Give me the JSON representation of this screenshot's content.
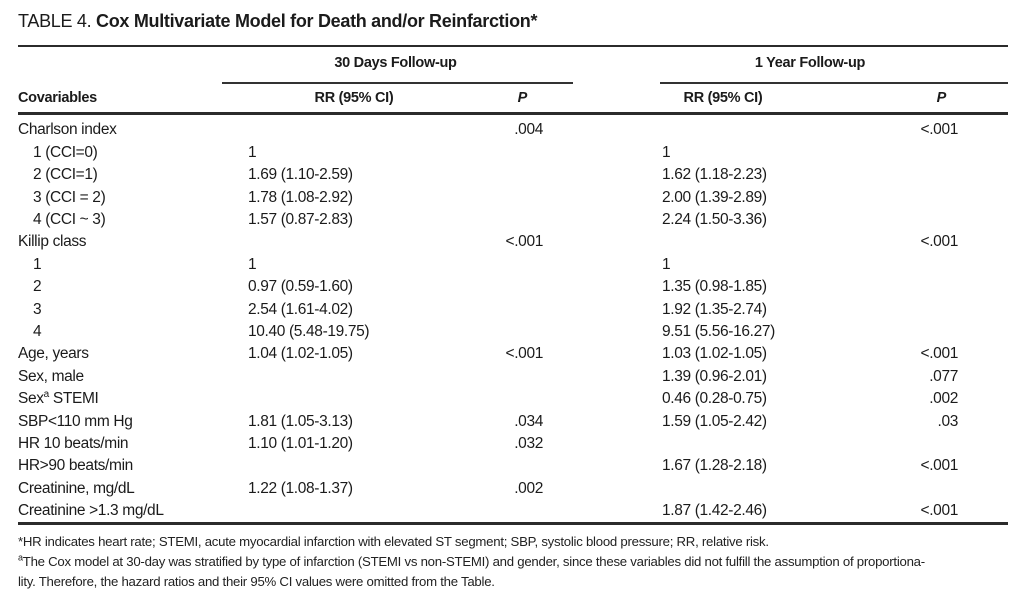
{
  "title": {
    "prefix": "TABLE 4.",
    "text": "Cox Multivariate Model for Death and/or Reinfarction*"
  },
  "header": {
    "covariables": "Covariables",
    "groups": [
      {
        "label": "30 Days Follow-up",
        "rr": "RR (95% CI)",
        "p": "P"
      },
      {
        "label": "1 Year Follow-up",
        "rr": "RR (95% CI)",
        "p": "P"
      }
    ]
  },
  "rows": [
    {
      "label": "Charlson index",
      "p30": ".004",
      "p1y": "<.001"
    },
    {
      "label": "1 (CCI=0)",
      "indent": true,
      "rr30": "1",
      "rr1y": "1"
    },
    {
      "label": "2 (CCI=1)",
      "indent": true,
      "rr30": "1.69 (1.10-2.59)",
      "rr1y": "1.62 (1.18-2.23)"
    },
    {
      "label": "3 (CCI = 2)",
      "indent": true,
      "rr30": "1.78 (1.08-2.92)",
      "rr1y": "2.00 (1.39-2.89)"
    },
    {
      "label": "4 (CCI ~ 3)",
      "indent": true,
      "rr30": "1.57 (0.87-2.83)",
      "rr1y": "2.24 (1.50-3.36)"
    },
    {
      "label": "Killip class",
      "p30": "<.001",
      "p1y": "<.001"
    },
    {
      "label": "1",
      "indent": true,
      "rr30": "1",
      "rr1y": "1"
    },
    {
      "label": "2",
      "indent": true,
      "rr30": "0.97 (0.59-1.60)",
      "rr1y": "1.35 (0.98-1.85)"
    },
    {
      "label": "3",
      "indent": true,
      "rr30": "2.54 (1.61-4.02)",
      "rr1y": "1.92 (1.35-2.74)"
    },
    {
      "label": "4",
      "indent": true,
      "rr30": "10.40 (5.48-19.75)",
      "rr1y": "9.51 (5.56-16.27)"
    },
    {
      "label": "Age, years",
      "rr30": "1.04 (1.02-1.05)",
      "p30": "<.001",
      "rr1y": "1.03 (1.02-1.05)",
      "p1y": "<.001"
    },
    {
      "label": "Sex, male",
      "rr1y": "1.39 (0.96-2.01)",
      "p1y": ".077"
    },
    {
      "label": "Sex",
      "sup": "a",
      "label2": " STEMI",
      "rr1y": "0.46 (0.28-0.75)",
      "p1y": ".002"
    },
    {
      "label": "SBP<110 mm Hg",
      "rr30": "1.81 (1.05-3.13)",
      "p30": ".034",
      "rr1y": "1.59 (1.05-2.42)",
      "p1y": ".03"
    },
    {
      "label": "HR 10 beats/min",
      "rr30": "1.10 (1.01-1.20)",
      "p30": ".032"
    },
    {
      "label": "HR>90 beats/min",
      "rr1y": "1.67 (1.28-2.18)",
      "p1y": "<.001"
    },
    {
      "label": "Creatinine, mg/dL",
      "rr30": "1.22 (1.08-1.37)",
      "p30": ".002"
    },
    {
      "label": "Creatinine >1.3 mg/dL",
      "rr1y": "1.87 (1.42-2.46)",
      "p1y": "<.001"
    }
  ],
  "footnotes": [
    {
      "marker": "*",
      "text": "HR indicates heart rate; STEMI, acute myocardial infarction with elevated ST segment; SBP, systolic blood pressure; RR, relative risk."
    },
    {
      "marker": "a",
      "lines": [
        "The Cox model at 30-day was stratified by type of infarction (STEMI vs non-STEMI) and gender, since these variables did not fulfill the assumption of proportiona-",
        "lity. Therefore, the hazard ratios and their 95% CI values were omitted from the Table."
      ]
    }
  ]
}
